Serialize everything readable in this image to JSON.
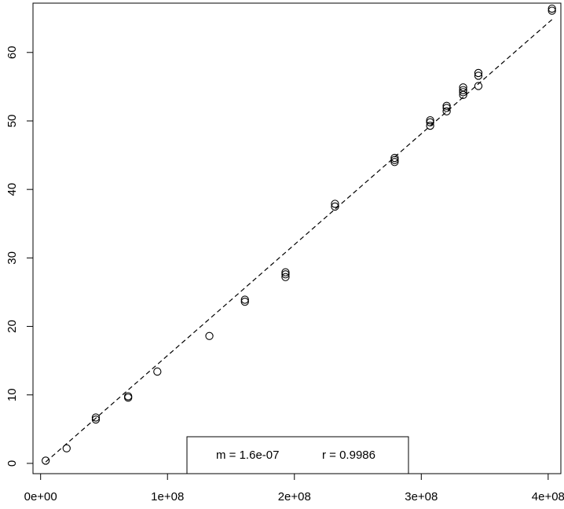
{
  "chart_data": {
    "type": "scatter",
    "title": "",
    "xlabel": "",
    "ylabel": "",
    "xlim": [
      -6000000,
      410000000
    ],
    "ylim": [
      -1.5,
      67.2
    ],
    "grid": false,
    "x_ticks": [
      0,
      100000000,
      200000000,
      300000000,
      400000000
    ],
    "x_tick_labels": [
      "0e+00",
      "1e+08",
      "2e+08",
      "3e+08",
      "4e+08"
    ],
    "y_ticks": [
      0,
      10,
      20,
      30,
      40,
      50,
      60
    ],
    "y_tick_labels": [
      "0",
      "10",
      "20",
      "30",
      "40",
      "50",
      "60"
    ],
    "points": {
      "x": [
        4000000,
        20500000,
        43500000,
        43500000,
        69000000,
        69000000,
        92000000,
        133000000,
        161000000,
        161000000,
        193000000,
        193000000,
        193000000,
        232000000,
        232000000,
        279000000,
        279000000,
        279000000,
        307000000,
        307000000,
        307000000,
        320000000,
        320000000,
        320000000,
        333000000,
        333000000,
        333000000,
        333000000,
        345000000,
        345000000,
        345000000,
        403000000,
        403000000
      ],
      "y": [
        0.4,
        2.2,
        6.4,
        6.7,
        9.6,
        9.8,
        13.4,
        18.6,
        23.6,
        23.9,
        27.2,
        27.6,
        27.9,
        37.5,
        37.9,
        44.0,
        44.3,
        44.6,
        49.3,
        49.8,
        50.1,
        51.4,
        51.9,
        52.2,
        53.8,
        54.2,
        54.5,
        54.9,
        55.1,
        56.6,
        57.0,
        66.1,
        66.4
      ]
    },
    "fit_line": {
      "style": "dashed",
      "x": [
        4000000,
        403000000
      ],
      "y": [
        0.2,
        64.8
      ]
    },
    "legend": {
      "placement": "bottom-center",
      "m_label": "m = 1.6e-07",
      "r_label": "r = 0.9986"
    }
  }
}
